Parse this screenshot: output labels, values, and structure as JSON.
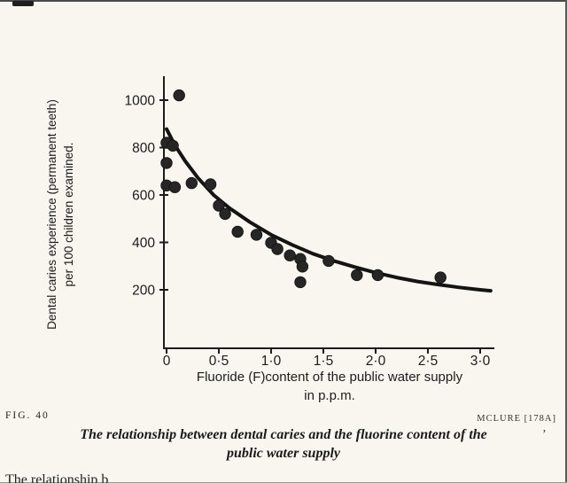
{
  "figure": {
    "fig_label": "FIG. 40",
    "credit": "MCLURE [178A]",
    "caption_line1": "The relationship between dental caries and the fluorine content of the",
    "caption_line2": "public water supply",
    "stray_mark": "’",
    "cropped_body_text": "The relationship b",
    "ink_color": "#1c1c1c",
    "paper_color": "#f8f6ef"
  },
  "chart_data": {
    "type": "scatter",
    "title": "",
    "ylabel_line1": "Dental caries experience (permanent teeth)",
    "ylabel_line2": "per 100 children examined.",
    "xlabel_line1": "Fluoride (F)content of the public water supply",
    "xlabel_line2": "in p.p.m.",
    "xlim": [
      0,
      3.1
    ],
    "ylim": [
      0,
      1100
    ],
    "x_ticks": [
      0,
      0.5,
      1,
      1.5,
      2,
      2.5,
      3
    ],
    "x_tick_labels": [
      "0",
      "0·5",
      "1·0",
      "1·5",
      "2·0",
      "2·5",
      "3·0"
    ],
    "y_ticks": [
      200,
      400,
      600,
      800,
      1000
    ],
    "y_tick_labels": [
      "200",
      "400",
      "600",
      "800",
      "1000"
    ],
    "grid": false,
    "axis_color": "#1c1c1c",
    "point_color": "#262626",
    "curve_color": "#141414",
    "points": [
      [
        0,
        820
      ],
      [
        0.06,
        808
      ],
      [
        0,
        735
      ],
      [
        0,
        640
      ],
      [
        0.08,
        633
      ],
      [
        0.12,
        1020
      ],
      [
        0.24,
        650
      ],
      [
        0.42,
        645
      ],
      [
        0.5,
        555
      ],
      [
        0.56,
        520
      ],
      [
        0.68,
        445
      ],
      [
        0.86,
        432
      ],
      [
        1.0,
        398
      ],
      [
        1.06,
        372
      ],
      [
        1.18,
        345
      ],
      [
        1.28,
        330
      ],
      [
        1.3,
        298
      ],
      [
        1.28,
        232
      ],
      [
        1.55,
        322
      ],
      [
        1.82,
        262
      ],
      [
        2.02,
        262
      ],
      [
        2.62,
        252
      ]
    ],
    "curve": [
      [
        0,
        878
      ],
      [
        0.08,
        810
      ],
      [
        0.18,
        742
      ],
      [
        0.3,
        672
      ],
      [
        0.45,
        600
      ],
      [
        0.6,
        545
      ],
      [
        0.8,
        485
      ],
      [
        1.0,
        432
      ],
      [
        1.2,
        390
      ],
      [
        1.4,
        352
      ],
      [
        1.6,
        322
      ],
      [
        1.8,
        296
      ],
      [
        2.0,
        272
      ],
      [
        2.2,
        252
      ],
      [
        2.4,
        235
      ],
      [
        2.6,
        222
      ],
      [
        2.8,
        210
      ],
      [
        3.0,
        200
      ],
      [
        3.1,
        196
      ]
    ]
  }
}
